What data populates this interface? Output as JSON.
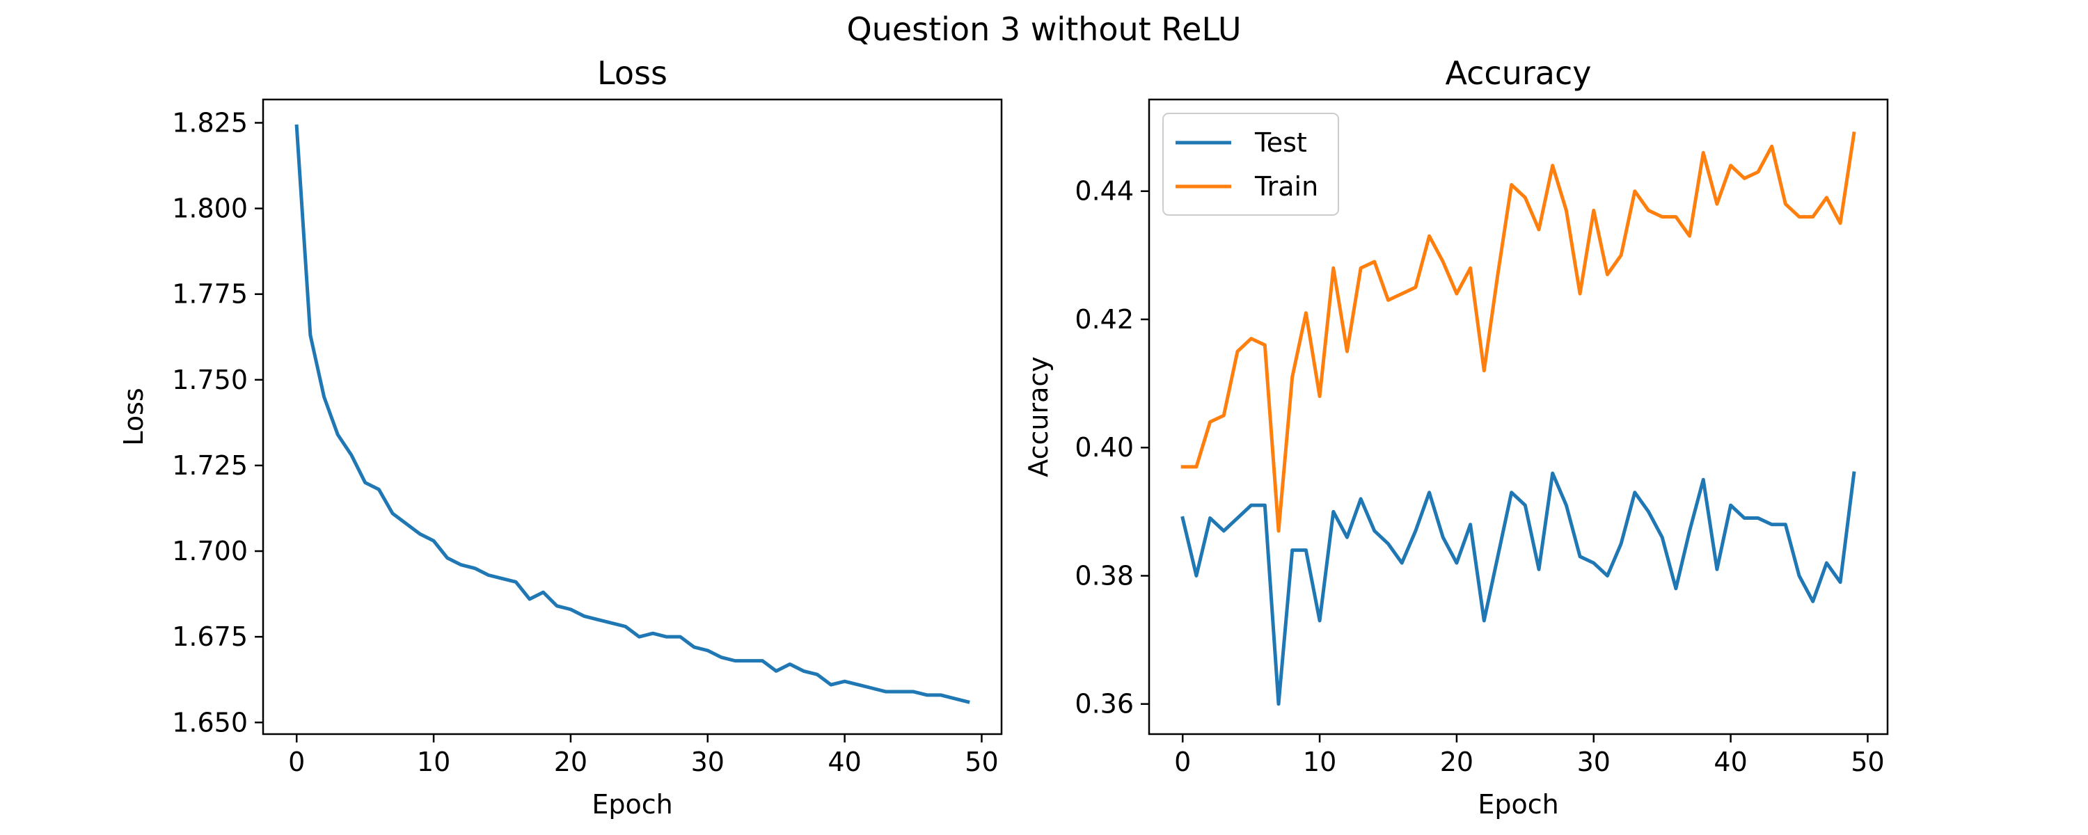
{
  "figure": {
    "suptitle": "Question 3 without ReLU"
  },
  "chart_data": [
    {
      "type": "line",
      "title": "Loss",
      "xlabel": "Epoch",
      "ylabel": "Loss",
      "xlim": [
        -2.45,
        51.45
      ],
      "ylim": [
        1.6466,
        1.8318
      ],
      "xticks": [
        0,
        10,
        20,
        30,
        40,
        50
      ],
      "xtick_labels": [
        "0",
        "10",
        "20",
        "30",
        "40",
        "50"
      ],
      "yticks": [
        1.65,
        1.675,
        1.7,
        1.725,
        1.75,
        1.775,
        1.8,
        1.825
      ],
      "ytick_labels": [
        "1.650",
        "1.675",
        "1.700",
        "1.725",
        "1.750",
        "1.775",
        "1.800",
        "1.825"
      ],
      "grid": false,
      "legend": null,
      "series": [
        {
          "color": "#1f77b4",
          "x": [
            0,
            1,
            2,
            3,
            4,
            5,
            6,
            7,
            8,
            9,
            10,
            11,
            12,
            13,
            14,
            15,
            16,
            17,
            18,
            19,
            20,
            21,
            22,
            23,
            24,
            25,
            26,
            27,
            28,
            29,
            30,
            31,
            32,
            33,
            34,
            35,
            36,
            37,
            38,
            39,
            40,
            41,
            42,
            43,
            44,
            45,
            46,
            47,
            48,
            49
          ],
          "values": [
            1.824,
            1.763,
            1.745,
            1.734,
            1.728,
            1.72,
            1.718,
            1.711,
            1.708,
            1.705,
            1.703,
            1.698,
            1.696,
            1.695,
            1.693,
            1.692,
            1.691,
            1.686,
            1.688,
            1.684,
            1.683,
            1.681,
            1.68,
            1.679,
            1.678,
            1.675,
            1.676,
            1.675,
            1.675,
            1.672,
            1.671,
            1.669,
            1.668,
            1.668,
            1.668,
            1.665,
            1.667,
            1.665,
            1.664,
            1.661,
            1.662,
            1.661,
            1.66,
            1.659,
            1.659,
            1.659,
            1.658,
            1.658,
            1.657,
            1.656
          ]
        }
      ]
    },
    {
      "type": "line",
      "title": "Accuracy",
      "xlabel": "Epoch",
      "ylabel": "Accuracy",
      "xlim": [
        -2.45,
        51.45
      ],
      "ylim": [
        0.3553,
        0.4543
      ],
      "xticks": [
        0,
        10,
        20,
        30,
        40,
        50
      ],
      "xtick_labels": [
        "0",
        "10",
        "20",
        "30",
        "40",
        "50"
      ],
      "yticks": [
        0.36,
        0.38,
        0.4,
        0.42,
        0.44
      ],
      "ytick_labels": [
        "0.36",
        "0.38",
        "0.40",
        "0.42",
        "0.44"
      ],
      "grid": false,
      "legend": "upper-left",
      "series": [
        {
          "name": "Test",
          "color": "#1f77b4",
          "x": [
            0,
            1,
            2,
            3,
            4,
            5,
            6,
            7,
            8,
            9,
            10,
            11,
            12,
            13,
            14,
            15,
            16,
            17,
            18,
            19,
            20,
            21,
            22,
            23,
            24,
            25,
            26,
            27,
            28,
            29,
            30,
            31,
            32,
            33,
            34,
            35,
            36,
            37,
            38,
            39,
            40,
            41,
            42,
            43,
            44,
            45,
            46,
            47,
            48,
            49
          ],
          "values": [
            0.389,
            0.38,
            0.389,
            0.387,
            0.389,
            0.391,
            0.391,
            0.36,
            0.384,
            0.384,
            0.373,
            0.39,
            0.386,
            0.392,
            0.387,
            0.385,
            0.382,
            0.387,
            0.393,
            0.386,
            0.382,
            0.388,
            0.373,
            0.383,
            0.393,
            0.391,
            0.381,
            0.396,
            0.391,
            0.383,
            0.382,
            0.38,
            0.385,
            0.393,
            0.39,
            0.386,
            0.378,
            0.387,
            0.395,
            0.381,
            0.391,
            0.389,
            0.389,
            0.388,
            0.388,
            0.38,
            0.376,
            0.382,
            0.379,
            0.396
          ]
        },
        {
          "name": "Train",
          "color": "#ff7f0e",
          "x": [
            0,
            1,
            2,
            3,
            4,
            5,
            6,
            7,
            8,
            9,
            10,
            11,
            12,
            13,
            14,
            15,
            16,
            17,
            18,
            19,
            20,
            21,
            22,
            23,
            24,
            25,
            26,
            27,
            28,
            29,
            30,
            31,
            32,
            33,
            34,
            35,
            36,
            37,
            38,
            39,
            40,
            41,
            42,
            43,
            44,
            45,
            46,
            47,
            48,
            49
          ],
          "values": [
            0.397,
            0.397,
            0.404,
            0.405,
            0.415,
            0.417,
            0.416,
            0.387,
            0.411,
            0.421,
            0.408,
            0.428,
            0.415,
            0.428,
            0.429,
            0.423,
            0.424,
            0.425,
            0.433,
            0.429,
            0.424,
            0.428,
            0.412,
            0.427,
            0.441,
            0.439,
            0.434,
            0.444,
            0.437,
            0.424,
            0.437,
            0.427,
            0.43,
            0.44,
            0.437,
            0.436,
            0.436,
            0.433,
            0.446,
            0.438,
            0.444,
            0.442,
            0.443,
            0.447,
            0.438,
            0.436,
            0.436,
            0.439,
            0.435,
            0.449
          ]
        }
      ]
    }
  ]
}
